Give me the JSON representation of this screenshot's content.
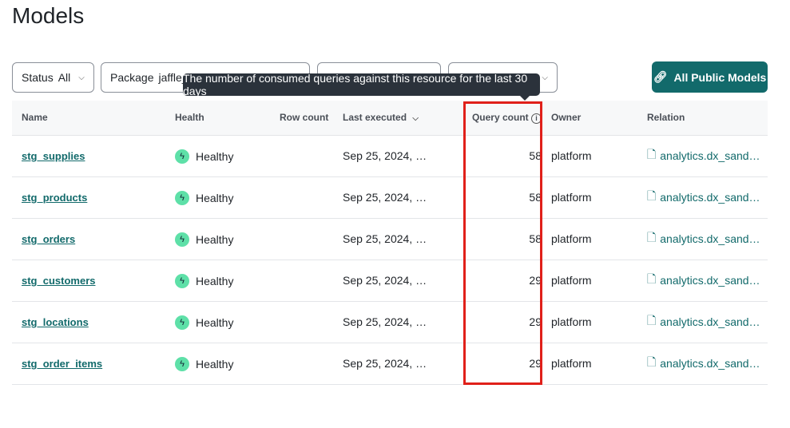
{
  "title": "Models",
  "filters": [
    {
      "label": "Status",
      "value": "All"
    },
    {
      "label": "Package",
      "value": "jaffle_"
    },
    {
      "label": "",
      "value": ""
    },
    {
      "label": "",
      "value": ""
    }
  ],
  "button": {
    "label": "All Public Models",
    "icon": "link-icon"
  },
  "tooltip": "The number of consumed queries against this resource for the last 30 days",
  "columns": [
    "Name",
    "Health",
    "Row count",
    "Last executed",
    "Query count",
    "Owner",
    "Relation"
  ],
  "rows": [
    {
      "name": "stg_supplies",
      "health": "Healthy",
      "row_count": "",
      "last_executed": "Sep 25, 2024, …",
      "query_count": "58",
      "owner": "platform",
      "relation": "analytics.dx_sand…"
    },
    {
      "name": "stg_products",
      "health": "Healthy",
      "row_count": "",
      "last_executed": "Sep 25, 2024, …",
      "query_count": "58",
      "owner": "platform",
      "relation": "analytics.dx_sand…"
    },
    {
      "name": "stg_orders",
      "health": "Healthy",
      "row_count": "",
      "last_executed": "Sep 25, 2024, …",
      "query_count": "58",
      "owner": "platform",
      "relation": "analytics.dx_sand…"
    },
    {
      "name": "stg_customers",
      "health": "Healthy",
      "row_count": "",
      "last_executed": "Sep 25, 2024, …",
      "query_count": "29",
      "owner": "platform",
      "relation": "analytics.dx_sand…"
    },
    {
      "name": "stg_locations",
      "health": "Healthy",
      "row_count": "",
      "last_executed": "Sep 25, 2024, …",
      "query_count": "29",
      "owner": "platform",
      "relation": "analytics.dx_sand…"
    },
    {
      "name": "stg_order_items",
      "health": "Healthy",
      "row_count": "",
      "last_executed": "Sep 25, 2024, …",
      "query_count": "29",
      "owner": "platform",
      "relation": "analytics.dx_sand…"
    }
  ],
  "colors": {
    "accent": "#126a6b",
    "highlight": "#e0201a",
    "healthy": "#5ee0a8"
  }
}
